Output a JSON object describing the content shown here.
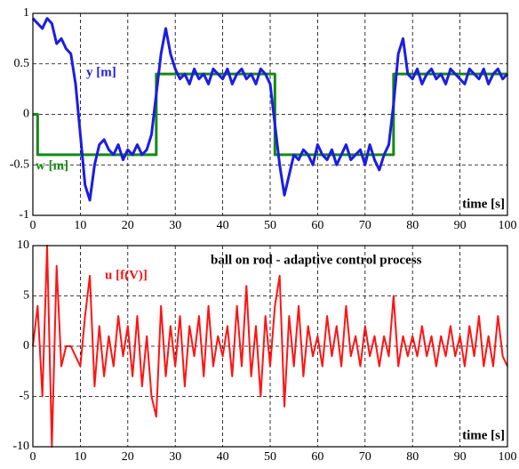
{
  "chart_data": [
    {
      "type": "line",
      "xlabel": "time [s]",
      "xlim": [
        0,
        100
      ],
      "xticks": [
        0,
        10,
        20,
        30,
        40,
        50,
        60,
        70,
        80,
        90,
        100
      ],
      "ylim": [
        -1,
        1
      ],
      "yticks": [
        -1,
        -0.5,
        0,
        0.5,
        1
      ],
      "grid": true,
      "series": [
        {
          "name": "w [m]",
          "color": "#138a13",
          "x": [
            0,
            1,
            1,
            26,
            26,
            51,
            51,
            76,
            76,
            100
          ],
          "values": [
            0,
            0,
            -0.4,
            -0.4,
            0.4,
            0.4,
            -0.4,
            -0.4,
            0.4,
            0.4
          ]
        },
        {
          "name": "y [m]",
          "color": "#1c1ce6",
          "x": [
            0,
            1,
            2,
            3,
            4,
            5,
            6,
            7,
            8,
            9,
            10,
            11,
            12,
            13,
            14,
            15,
            16,
            17,
            18,
            19,
            20,
            21,
            22,
            23,
            24,
            25,
            26,
            27,
            28,
            29,
            30,
            31,
            32,
            33,
            34,
            35,
            36,
            37,
            38,
            39,
            40,
            41,
            42,
            43,
            44,
            45,
            46,
            47,
            48,
            49,
            50,
            51,
            52,
            53,
            54,
            55,
            56,
            57,
            58,
            59,
            60,
            61,
            62,
            63,
            64,
            65,
            66,
            67,
            68,
            69,
            70,
            71,
            72,
            73,
            74,
            75,
            76,
            77,
            78,
            79,
            80,
            81,
            82,
            83,
            84,
            85,
            86,
            87,
            88,
            89,
            90,
            91,
            92,
            93,
            94,
            95,
            96,
            97,
            98,
            99,
            100
          ],
          "values": [
            0.95,
            0.9,
            0.85,
            0.95,
            0.9,
            0.7,
            0.75,
            0.65,
            0.6,
            0.3,
            -0.2,
            -0.7,
            -0.85,
            -0.5,
            -0.3,
            -0.25,
            -0.35,
            -0.4,
            -0.3,
            -0.45,
            -0.35,
            -0.4,
            -0.3,
            -0.4,
            -0.35,
            -0.2,
            0.2,
            0.6,
            0.85,
            0.6,
            0.45,
            0.35,
            0.4,
            0.3,
            0.45,
            0.35,
            0.4,
            0.3,
            0.45,
            0.4,
            0.35,
            0.45,
            0.3,
            0.4,
            0.45,
            0.35,
            0.4,
            0.3,
            0.45,
            0.4,
            0.3,
            -0.1,
            -0.5,
            -0.8,
            -0.6,
            -0.4,
            -0.45,
            -0.35,
            -0.4,
            -0.5,
            -0.3,
            -0.4,
            -0.45,
            -0.35,
            -0.5,
            -0.4,
            -0.3,
            -0.45,
            -0.4,
            -0.35,
            -0.5,
            -0.3,
            -0.45,
            -0.55,
            -0.4,
            -0.3,
            0.1,
            0.6,
            0.75,
            0.4,
            0.35,
            0.45,
            0.3,
            0.4,
            0.45,
            0.35,
            0.4,
            0.3,
            0.45,
            0.4,
            0.35,
            0.3,
            0.45,
            0.4,
            0.35,
            0.45,
            0.3,
            0.4,
            0.45,
            0.35,
            0.4
          ]
        }
      ]
    },
    {
      "type": "line",
      "title": "ball on rod - adaptive control process",
      "xlabel": "time [s]",
      "xlim": [
        0,
        100
      ],
      "xticks": [
        0,
        10,
        20,
        30,
        40,
        50,
        60,
        70,
        80,
        90,
        100
      ],
      "ylim": [
        -10,
        10
      ],
      "yticks": [
        -10,
        -5,
        0,
        5,
        10
      ],
      "grid": true,
      "series": [
        {
          "name": "u [f(V)]",
          "color": "#ff1414",
          "x": [
            0,
            1,
            2,
            3,
            4,
            5,
            6,
            7,
            8,
            9,
            10,
            11,
            12,
            13,
            14,
            15,
            16,
            17,
            18,
            19,
            20,
            21,
            22,
            23,
            24,
            25,
            26,
            27,
            28,
            29,
            30,
            31,
            32,
            33,
            34,
            35,
            36,
            37,
            38,
            39,
            40,
            41,
            42,
            43,
            44,
            45,
            46,
            47,
            48,
            49,
            50,
            51,
            52,
            53,
            54,
            55,
            56,
            57,
            58,
            59,
            60,
            61,
            62,
            63,
            64,
            65,
            66,
            67,
            68,
            69,
            70,
            71,
            72,
            73,
            74,
            75,
            76,
            77,
            78,
            79,
            80,
            81,
            82,
            83,
            84,
            85,
            86,
            87,
            88,
            89,
            90,
            91,
            92,
            93,
            94,
            95,
            96,
            97,
            98,
            99,
            100
          ],
          "values": [
            0,
            4,
            -5,
            10,
            -10,
            8,
            -2,
            0,
            0,
            -1,
            -2,
            3,
            7,
            -4,
            2,
            -3,
            1,
            -2,
            3,
            -1,
            2,
            -3,
            3,
            -4,
            1,
            -5,
            -7,
            4,
            -3,
            2,
            -2,
            3,
            -4,
            2,
            -1,
            3,
            -3,
            4,
            -2,
            1,
            -1,
            2,
            -3,
            4,
            -2,
            6,
            -3,
            2,
            -5,
            3,
            -2,
            4,
            7,
            -6,
            3,
            -2,
            4,
            -3,
            2,
            -1,
            1,
            -2,
            3,
            -1,
            2,
            -2,
            4,
            -1,
            1,
            -2,
            2,
            -1,
            1,
            -2,
            1,
            -1,
            5,
            -2,
            1,
            -1,
            1,
            -1,
            2,
            -1,
            1,
            -2,
            1,
            -1,
            2,
            -1,
            1,
            -2,
            2,
            -1,
            3,
            -2,
            1,
            -2,
            3,
            -1,
            -2
          ]
        }
      ]
    }
  ]
}
